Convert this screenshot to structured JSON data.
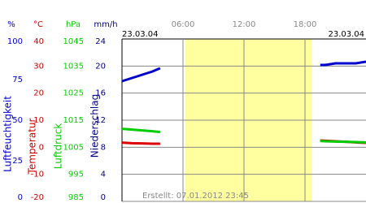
{
  "chart_data": {
    "type": "line",
    "dates": [
      "23.03.04",
      "23.03.04"
    ],
    "footer": "Erstellt: 07.01.2012 23:45",
    "xlim": [
      0,
      24
    ],
    "xticks": [
      {
        "value": 6,
        "label": "06:00"
      },
      {
        "value": 12,
        "label": "12:00"
      },
      {
        "value": 18,
        "label": "18:00"
      }
    ],
    "highlight": {
      "range": [
        6.2,
        18.7
      ],
      "color": "#ffffa0"
    },
    "axes": [
      {
        "unit": "%",
        "label": "Luftfeuchtigkeit",
        "color": "#0000cc",
        "lim": [
          0,
          100
        ],
        "ticks": [
          100,
          75,
          50,
          25,
          0
        ]
      },
      {
        "unit": "°C",
        "label": "Temperatur",
        "color": "#cc0000",
        "lim": [
          -20,
          40
        ],
        "ticks": [
          40,
          30,
          20,
          10,
          0,
          -10,
          -20
        ]
      },
      {
        "unit": "hPa",
        "label": "Luftdruck",
        "color": "#00cc00",
        "lim": [
          985,
          1045
        ],
        "ticks": [
          1045,
          1035,
          1025,
          1015,
          1005,
          995,
          985
        ]
      },
      {
        "unit": "mm/h",
        "label": "Niederschlag",
        "color": "#000080",
        "lim": [
          0,
          24
        ],
        "ticks": [
          24,
          20,
          16,
          12,
          8,
          4,
          0
        ]
      }
    ],
    "x": [
      0,
      1,
      2,
      3,
      3.75,
      12,
      19.5,
      20,
      21,
      22,
      23,
      24
    ],
    "series": [
      {
        "axis": 0,
        "color": "#0000cc",
        "values": [
          74,
          76,
          78,
          80,
          82,
          null,
          84,
          84,
          85,
          85,
          85,
          86
        ]
      },
      {
        "axis": 1,
        "color": "#dd0000",
        "values": [
          1.7,
          1.5,
          1.4,
          1.3,
          1.3,
          null,
          2.5,
          2.4,
          2.2,
          2.0,
          1.8,
          1.6
        ]
      },
      {
        "axis": 2,
        "color": "#00cc00",
        "values": [
          1011.8,
          1011.5,
          1011.2,
          1010.9,
          1010.6,
          null,
          1007.3,
          1007.2,
          1007.1,
          1007.0,
          1006.9,
          1006.8
        ]
      }
    ]
  }
}
